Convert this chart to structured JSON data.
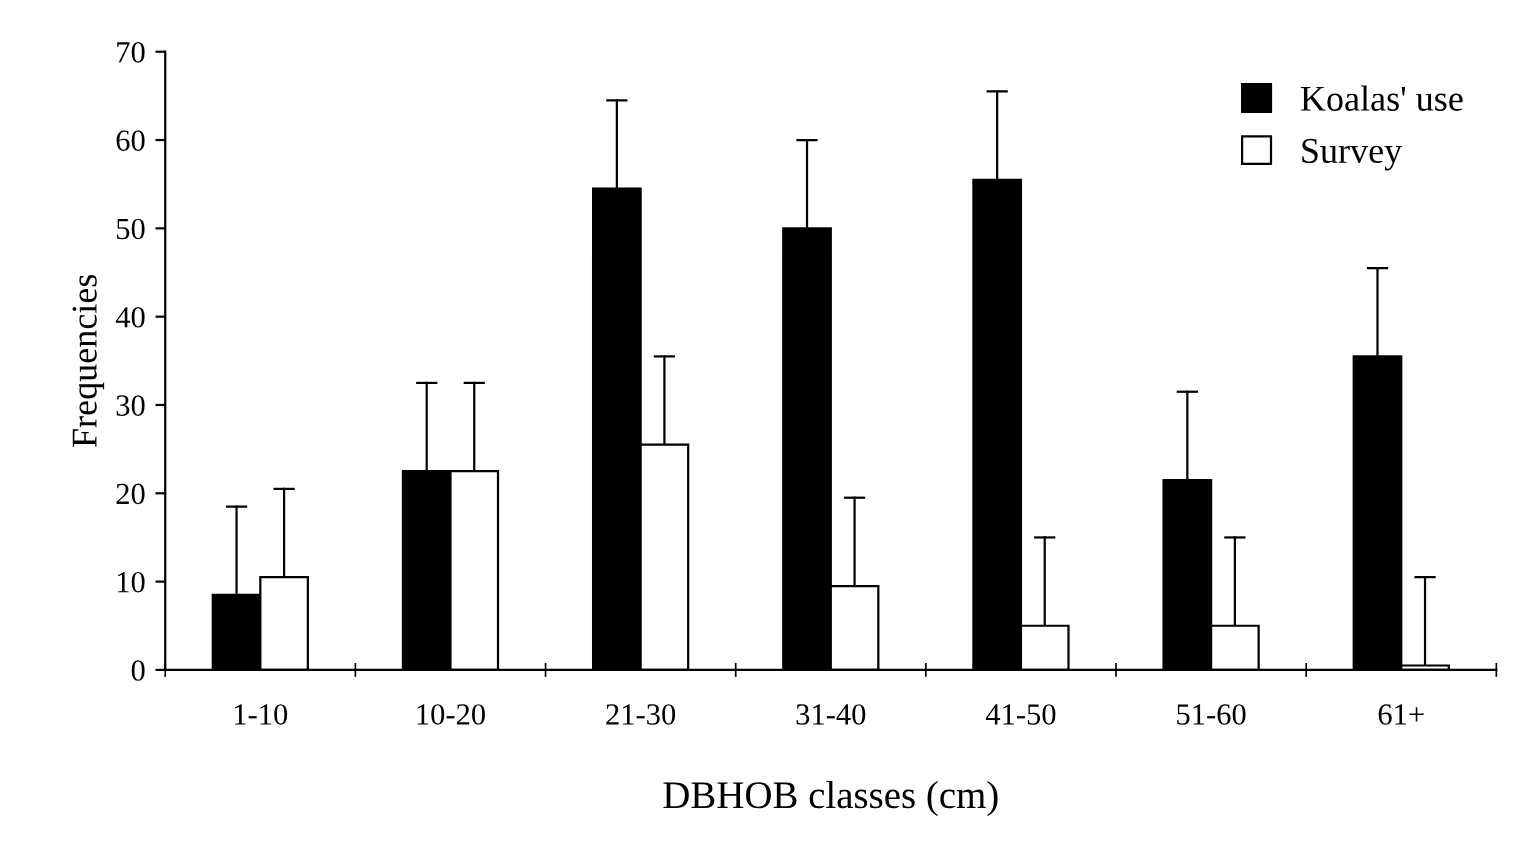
{
  "chart_data": {
    "type": "bar",
    "xlabel": "DBHOB classes (cm)",
    "ylabel": "Frequencies",
    "categories": [
      "1-10",
      "10-20",
      "21-30",
      "31-40",
      "41-50",
      "51-60",
      "61+"
    ],
    "series": [
      {
        "name": "Koalas' use",
        "color": "#000000",
        "values": [
          8.5,
          22.5,
          54.5,
          50,
          55.5,
          21.5,
          35.5
        ],
        "errors": [
          [
            8.5,
            18.5
          ],
          [
            22.5,
            32.5
          ],
          [
            54.5,
            64.5
          ],
          [
            50,
            60
          ],
          [
            55.5,
            65.5
          ],
          [
            21.5,
            31.5
          ],
          [
            35.5,
            45.5
          ]
        ]
      },
      {
        "name": "Survey",
        "color": "#ffffff",
        "values": [
          10.5,
          22.5,
          25.5,
          9.5,
          5,
          5,
          0.5
        ],
        "errors": [
          [
            10.5,
            20.5
          ],
          [
            22.5,
            32.5
          ],
          [
            25.5,
            35.5
          ],
          [
            9.5,
            19.5
          ],
          [
            5,
            15
          ],
          [
            5,
            15
          ],
          [
            0.5,
            10.5
          ]
        ]
      }
    ],
    "ylim": [
      0,
      70
    ],
    "yticks": [
      0,
      10,
      20,
      30,
      40,
      50,
      60,
      70
    ],
    "grid": false,
    "legend": "top right"
  }
}
